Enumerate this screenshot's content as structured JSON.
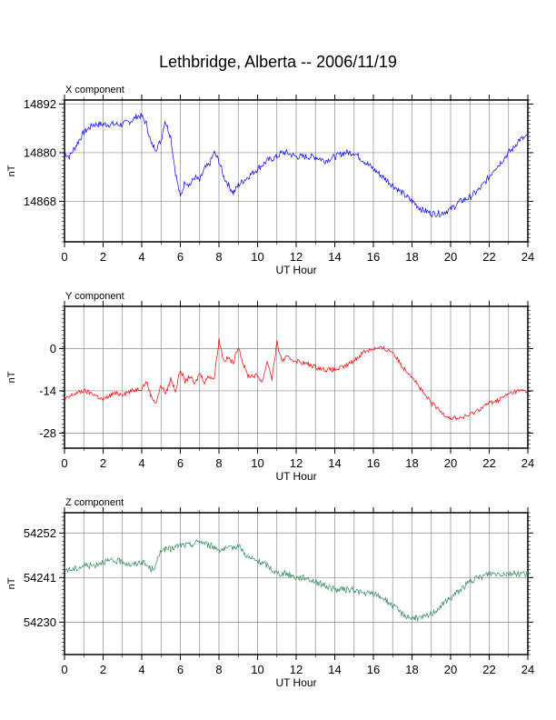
{
  "title": "Lethbridge, Alberta -- 2006/11/19",
  "chart_data": [
    {
      "type": "line",
      "title": "X component",
      "xlabel": "UT Hour",
      "ylabel": "nT",
      "xlim": [
        0,
        24
      ],
      "ylim": [
        14858,
        14893
      ],
      "xticks": [
        0,
        2,
        4,
        6,
        8,
        10,
        12,
        14,
        16,
        18,
        20,
        22,
        24
      ],
      "yticks": [
        14868,
        14880,
        14892
      ],
      "grid": true,
      "color": "#0000ff",
      "series": [
        {
          "x": [
            0,
            0.25,
            0.5,
            0.75,
            1,
            1.25,
            1.5,
            1.75,
            2,
            2.5,
            3,
            3.5,
            3.75,
            4,
            4.25,
            4.5,
            4.75,
            5,
            5.2,
            5.5,
            5.75,
            6,
            6.25,
            6.5,
            6.75,
            7,
            7.25,
            7.5,
            7.75,
            8,
            8.25,
            8.5,
            8.75,
            9,
            9.25,
            9.5,
            10,
            10.5,
            11,
            11.25,
            11.5,
            12,
            12.5,
            13,
            13.5,
            14,
            14.5,
            15,
            15.5,
            16,
            16.5,
            17,
            17.5,
            18,
            18.5,
            19,
            19.5,
            20,
            20.5,
            21,
            21.5,
            22,
            22.25,
            22.5,
            23,
            23.25,
            23.5,
            24
          ],
          "y": [
            14880,
            14879,
            14881,
            14883,
            14885,
            14886,
            14887,
            14887,
            14887,
            14887,
            14887,
            14888,
            14889,
            14889,
            14887,
            14882,
            14881,
            14883,
            14888,
            14884,
            14875,
            14869,
            14873,
            14872,
            14874,
            14873,
            14876,
            14877,
            14880,
            14878,
            14874,
            14872,
            14870,
            14872,
            14873,
            14874,
            14876,
            14878,
            14879,
            14880,
            14880,
            14879,
            14879,
            14879,
            14878,
            14879,
            14880,
            14880,
            14878,
            14876,
            14874,
            14872,
            14870,
            14868,
            14866,
            14865,
            14865,
            14866,
            14868,
            14869,
            14871,
            14874,
            14876,
            14877,
            14880,
            14881,
            14883,
            14884
          ]
        }
      ]
    },
    {
      "type": "line",
      "title": "Y component",
      "xlabel": "UT Hour",
      "ylabel": "nT",
      "xlim": [
        0,
        24
      ],
      "ylim": [
        -33,
        14
      ],
      "xticks": [
        0,
        2,
        4,
        6,
        8,
        10,
        12,
        14,
        16,
        18,
        20,
        22,
        24
      ],
      "yticks": [
        -28,
        -14,
        0
      ],
      "grid": true,
      "color": "#ff0000",
      "series": [
        {
          "x": [
            0,
            0.5,
            1,
            1.5,
            2,
            2.5,
            3,
            3.5,
            4,
            4.25,
            4.5,
            4.75,
            5,
            5.25,
            5.5,
            5.75,
            6,
            6.25,
            6.5,
            6.75,
            7,
            7.25,
            7.5,
            7.75,
            8,
            8.25,
            8.5,
            8.75,
            9,
            9.25,
            9.5,
            10,
            10.25,
            10.5,
            10.75,
            11,
            11.25,
            11.5,
            12,
            12.5,
            13,
            13.5,
            14,
            14.5,
            15,
            15.5,
            16,
            16.5,
            17,
            17.5,
            18,
            18.5,
            19,
            19.5,
            20,
            20.5,
            21,
            21.5,
            22,
            22.5,
            23,
            23.5,
            24
          ],
          "y": [
            -17,
            -15,
            -14,
            -15,
            -17,
            -15,
            -15,
            -14,
            -13,
            -11,
            -16,
            -18,
            -12,
            -15,
            -10,
            -14,
            -7,
            -11,
            -9,
            -12,
            -8,
            -11,
            -9,
            -10,
            3,
            -4,
            -3,
            -5,
            1,
            -5,
            -9,
            -9,
            -11,
            -4,
            -10,
            2,
            -4,
            -3,
            -4,
            -5,
            -6,
            -7,
            -7,
            -6,
            -4,
            -1,
            0,
            0,
            -1,
            -6,
            -9,
            -14,
            -18,
            -21,
            -23,
            -23,
            -22,
            -20,
            -18,
            -17,
            -15,
            -14,
            -14
          ]
        }
      ]
    },
    {
      "type": "line",
      "title": "Z component",
      "xlabel": "UT Hour",
      "ylabel": "nT",
      "xlim": [
        0,
        24
      ],
      "ylim": [
        54222,
        54257
      ],
      "xticks": [
        0,
        2,
        4,
        6,
        8,
        10,
        12,
        14,
        16,
        18,
        20,
        22,
        24
      ],
      "yticks": [
        54230,
        54241,
        54252
      ],
      "grid": true,
      "color": "#2e8b57",
      "series": [
        {
          "x": [
            0,
            0.5,
            1,
            1.5,
            2,
            2.5,
            3,
            3.5,
            4,
            4.5,
            4.75,
            5,
            5.5,
            6,
            6.5,
            7,
            7.5,
            8,
            8.5,
            9,
            9.5,
            10,
            10.5,
            11,
            11.5,
            12,
            12.5,
            13,
            13.5,
            14,
            14.5,
            15,
            15.5,
            16,
            16.5,
            17,
            17.5,
            18,
            18.5,
            19,
            19.5,
            20,
            20.5,
            21,
            21.5,
            22,
            22.5,
            23,
            23.5,
            24
          ],
          "y": [
            54243,
            54243,
            54244,
            54244,
            54245,
            54245,
            54245,
            54244,
            54245,
            54243,
            54244,
            54248,
            54248,
            54249,
            54249,
            54250,
            54249,
            54248,
            54248,
            54249,
            54246,
            54245,
            54244,
            54242,
            54242,
            54241,
            54241,
            54240,
            54239,
            54238,
            54238,
            54238,
            54237,
            54237,
            54236,
            54234,
            54232,
            54231,
            54231,
            54232,
            54234,
            54236,
            54238,
            54240,
            54241,
            54242,
            54242,
            54242,
            54242,
            54242
          ]
        }
      ]
    }
  ]
}
